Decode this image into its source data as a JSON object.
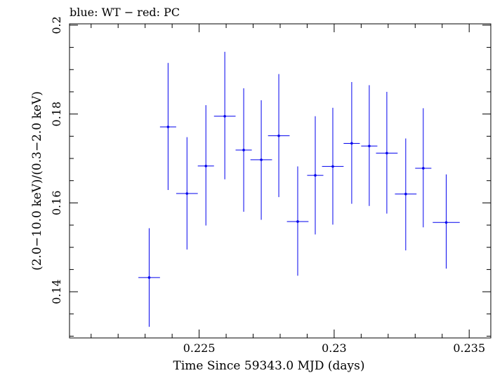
{
  "chart_data": {
    "type": "scatter",
    "title": "blue: WT − red: PC",
    "xlabel": "Time Since 59343.0 MJD (days)",
    "ylabel": "(2.0−10.0 keV)/(0.3−2.0 keV)",
    "xlim": [
      0.2202,
      0.2358
    ],
    "ylim": [
      0.1296,
      0.2003
    ],
    "x_ticks": [
      0.225,
      0.23,
      0.235
    ],
    "x_tick_labels": [
      "0.225",
      "0.23",
      "0.235"
    ],
    "y_ticks": [
      0.14,
      0.16,
      0.18,
      0.2
    ],
    "y_tick_labels": [
      "0.14",
      "0.16",
      "0.18",
      "0.2"
    ],
    "grid": false,
    "series_color": "#0000ee",
    "series": [
      {
        "points": [
          {
            "x": 0.22315,
            "xerr": 0.0004,
            "y": 0.1432,
            "yerr_low": 0.0111,
            "yerr_high": 0.0111
          },
          {
            "x": 0.22385,
            "xerr": 0.0003,
            "y": 0.1771,
            "yerr_low": 0.0142,
            "yerr_high": 0.0144
          },
          {
            "x": 0.22455,
            "xerr": 0.0004,
            "y": 0.1621,
            "yerr_low": 0.0126,
            "yerr_high": 0.0127
          },
          {
            "x": 0.22525,
            "xerr": 0.0003,
            "y": 0.1683,
            "yerr_low": 0.0134,
            "yerr_high": 0.0137
          },
          {
            "x": 0.22595,
            "xerr": 0.0004,
            "y": 0.1795,
            "yerr_low": 0.0142,
            "yerr_high": 0.0145
          },
          {
            "x": 0.22665,
            "xerr": 0.0003,
            "y": 0.1719,
            "yerr_low": 0.0139,
            "yerr_high": 0.0139
          },
          {
            "x": 0.2273,
            "xerr": 0.0004,
            "y": 0.1697,
            "yerr_low": 0.0135,
            "yerr_high": 0.0134
          },
          {
            "x": 0.22795,
            "xerr": 0.0004,
            "y": 0.1751,
            "yerr_low": 0.0138,
            "yerr_high": 0.0139
          },
          {
            "x": 0.22865,
            "xerr": 0.0004,
            "y": 0.1558,
            "yerr_low": 0.0122,
            "yerr_high": 0.0124
          },
          {
            "x": 0.2293,
            "xerr": 0.0003,
            "y": 0.1662,
            "yerr_low": 0.0133,
            "yerr_high": 0.0133
          },
          {
            "x": 0.22995,
            "xerr": 0.0004,
            "y": 0.1682,
            "yerr_low": 0.0131,
            "yerr_high": 0.0132
          },
          {
            "x": 0.23065,
            "xerr": 0.0003,
            "y": 0.1734,
            "yerr_low": 0.0136,
            "yerr_high": 0.0138
          },
          {
            "x": 0.2313,
            "xerr": 0.0003,
            "y": 0.1728,
            "yerr_low": 0.0135,
            "yerr_high": 0.0137
          },
          {
            "x": 0.23195,
            "xerr": 0.0004,
            "y": 0.1712,
            "yerr_low": 0.0136,
            "yerr_high": 0.0138
          },
          {
            "x": 0.23265,
            "xerr": 0.0004,
            "y": 0.162,
            "yerr_low": 0.0127,
            "yerr_high": 0.0125
          },
          {
            "x": 0.2333,
            "xerr": 0.0003,
            "y": 0.1678,
            "yerr_low": 0.0133,
            "yerr_high": 0.0135
          },
          {
            "x": 0.23415,
            "xerr": 0.0005,
            "y": 0.1556,
            "yerr_low": 0.0104,
            "yerr_high": 0.0108
          }
        ]
      }
    ]
  }
}
